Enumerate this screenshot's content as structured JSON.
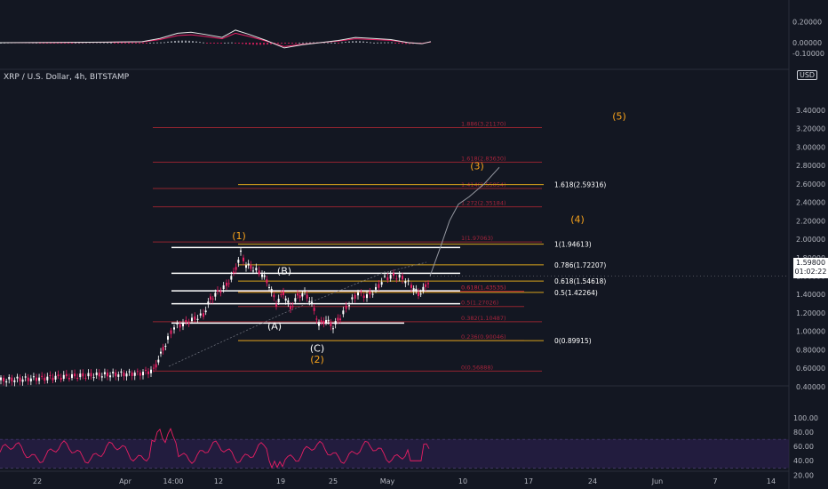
{
  "header": {
    "symbol_line": "XRP / U.S. Dollar, 4h, BITSTAMP",
    "currency": "USD",
    "last_price": "1.59800",
    "countdown": "01:02:22"
  },
  "chart_data": [
    {
      "type": "line",
      "panel": "macd",
      "y_ticks": [
        "0.20000",
        "0.00000",
        "-0.10000"
      ],
      "ylim": [
        -0.1,
        0.2
      ]
    },
    {
      "type": "line",
      "panel": "price",
      "title": "XRP / U.S. Dollar, 4h, BITSTAMP",
      "y_ticks": [
        "3.40000",
        "3.20000",
        "3.00000",
        "2.80000",
        "2.60000",
        "2.40000",
        "2.20000",
        "2.00000",
        "1.80000",
        "1.60000",
        "1.40000",
        "1.20000",
        "1.00000",
        "0.80000",
        "0.60000",
        "0.40000"
      ],
      "ylim": [
        0.3,
        3.5
      ],
      "x_ticks": [
        "22",
        "Apr",
        "14:00",
        "12",
        "19",
        "25",
        "May",
        "10",
        "17",
        "24",
        "Jun",
        "7",
        "14"
      ],
      "wave_labels": [
        {
          "text": "(1)",
          "color": "#f7a21b"
        },
        {
          "text": "(2)",
          "color": "#f7a21b"
        },
        {
          "text": "(3)",
          "color": "#f7a21b"
        },
        {
          "text": "(4)",
          "color": "#f7a21b"
        },
        {
          "text": "(5)",
          "color": "#f7a21b"
        },
        {
          "text": "(A)",
          "color": "#ffffff"
        },
        {
          "text": "(B)",
          "color": "#ffffff"
        },
        {
          "text": "(C)",
          "color": "#ffffff"
        }
      ],
      "fib_yellow": [
        {
          "label": "1.618(2.59316)",
          "value": 2.59316
        },
        {
          "label": "1(1.94613)",
          "value": 1.94613
        },
        {
          "label": "0.786(1.72207)",
          "value": 1.72207
        },
        {
          "label": "0.618(1.54618)",
          "value": 1.54618
        },
        {
          "label": "0.5(1.42264)",
          "value": 1.42264
        },
        {
          "label": "0(0.89915)",
          "value": 0.89915
        }
      ],
      "fib_red": [
        {
          "label": "1.886(3.21170)",
          "value": 3.2117
        },
        {
          "label": "1.618(2.83630)",
          "value": 2.8363
        },
        {
          "label": "1.414(2.55054)",
          "value": 2.55054
        },
        {
          "label": "1.272(2.35184)",
          "value": 2.35184
        },
        {
          "label": "1(1.97063)",
          "value": 1.97063
        },
        {
          "label": "0.618(1.43535)",
          "value": 1.43535
        },
        {
          "label": "0.618(1.43535)",
          "value": 1.43535
        },
        {
          "label": "0.5(1.27026)",
          "value": 1.27026
        },
        {
          "label": "0.382(1.10487)",
          "value": 1.10487
        },
        {
          "label": "0.236(0.90046)",
          "value": 0.90046
        },
        {
          "label": "0(0.56888)",
          "value": 0.56888
        }
      ],
      "white_levels": [
        1.91,
        1.63,
        1.44,
        1.3,
        1.09
      ]
    },
    {
      "type": "line",
      "panel": "rsi",
      "y_ticks": [
        "100.00",
        "80.00",
        "60.00",
        "40.00",
        "20.00"
      ],
      "ylim": [
        15,
        105
      ]
    }
  ]
}
